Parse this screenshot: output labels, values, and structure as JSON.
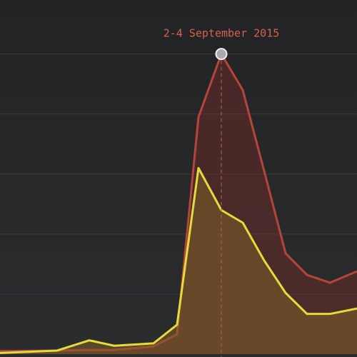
{
  "chart_data": {
    "type": "area",
    "annotation": "2-4 September 2015",
    "xlim": [
      0,
      100
    ],
    "x": [
      0,
      16,
      25,
      32,
      43,
      49.6,
      55.6,
      62,
      68,
      74,
      80,
      86,
      92.4,
      100
    ],
    "ylim": [
      0,
      5.9
    ],
    "yticks": [
      1,
      2,
      3,
      4,
      5
    ],
    "grid": true,
    "highlight_index": 7,
    "series": [
      {
        "color": "#b5443a",
        "fill": "rgba(140,45,40,0.35)",
        "values": [
          0.05,
          0.06,
          0.07,
          0.07,
          0.13,
          0.33,
          3.95,
          5.0,
          4.4,
          3.05,
          1.68,
          1.32,
          1.19,
          1.38
        ]
      },
      {
        "color": "#e3dc3a",
        "fill": "rgba(130,95,40,0.55)",
        "values": [
          0.02,
          0.06,
          0.23,
          0.14,
          0.18,
          0.49,
          3.1,
          2.4,
          2.19,
          1.56,
          1.02,
          0.67,
          0.67,
          0.76
        ]
      }
    ]
  }
}
